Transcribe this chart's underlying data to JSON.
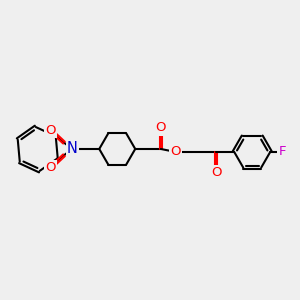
{
  "bg_color": "#efefef",
  "bond_color": "#000000",
  "bond_width": 1.5,
  "atom_colors": {
    "N": "#0000cc",
    "O": "#ff0000",
    "F": "#cc00cc",
    "C": "#000000"
  },
  "font_size": 9.5
}
